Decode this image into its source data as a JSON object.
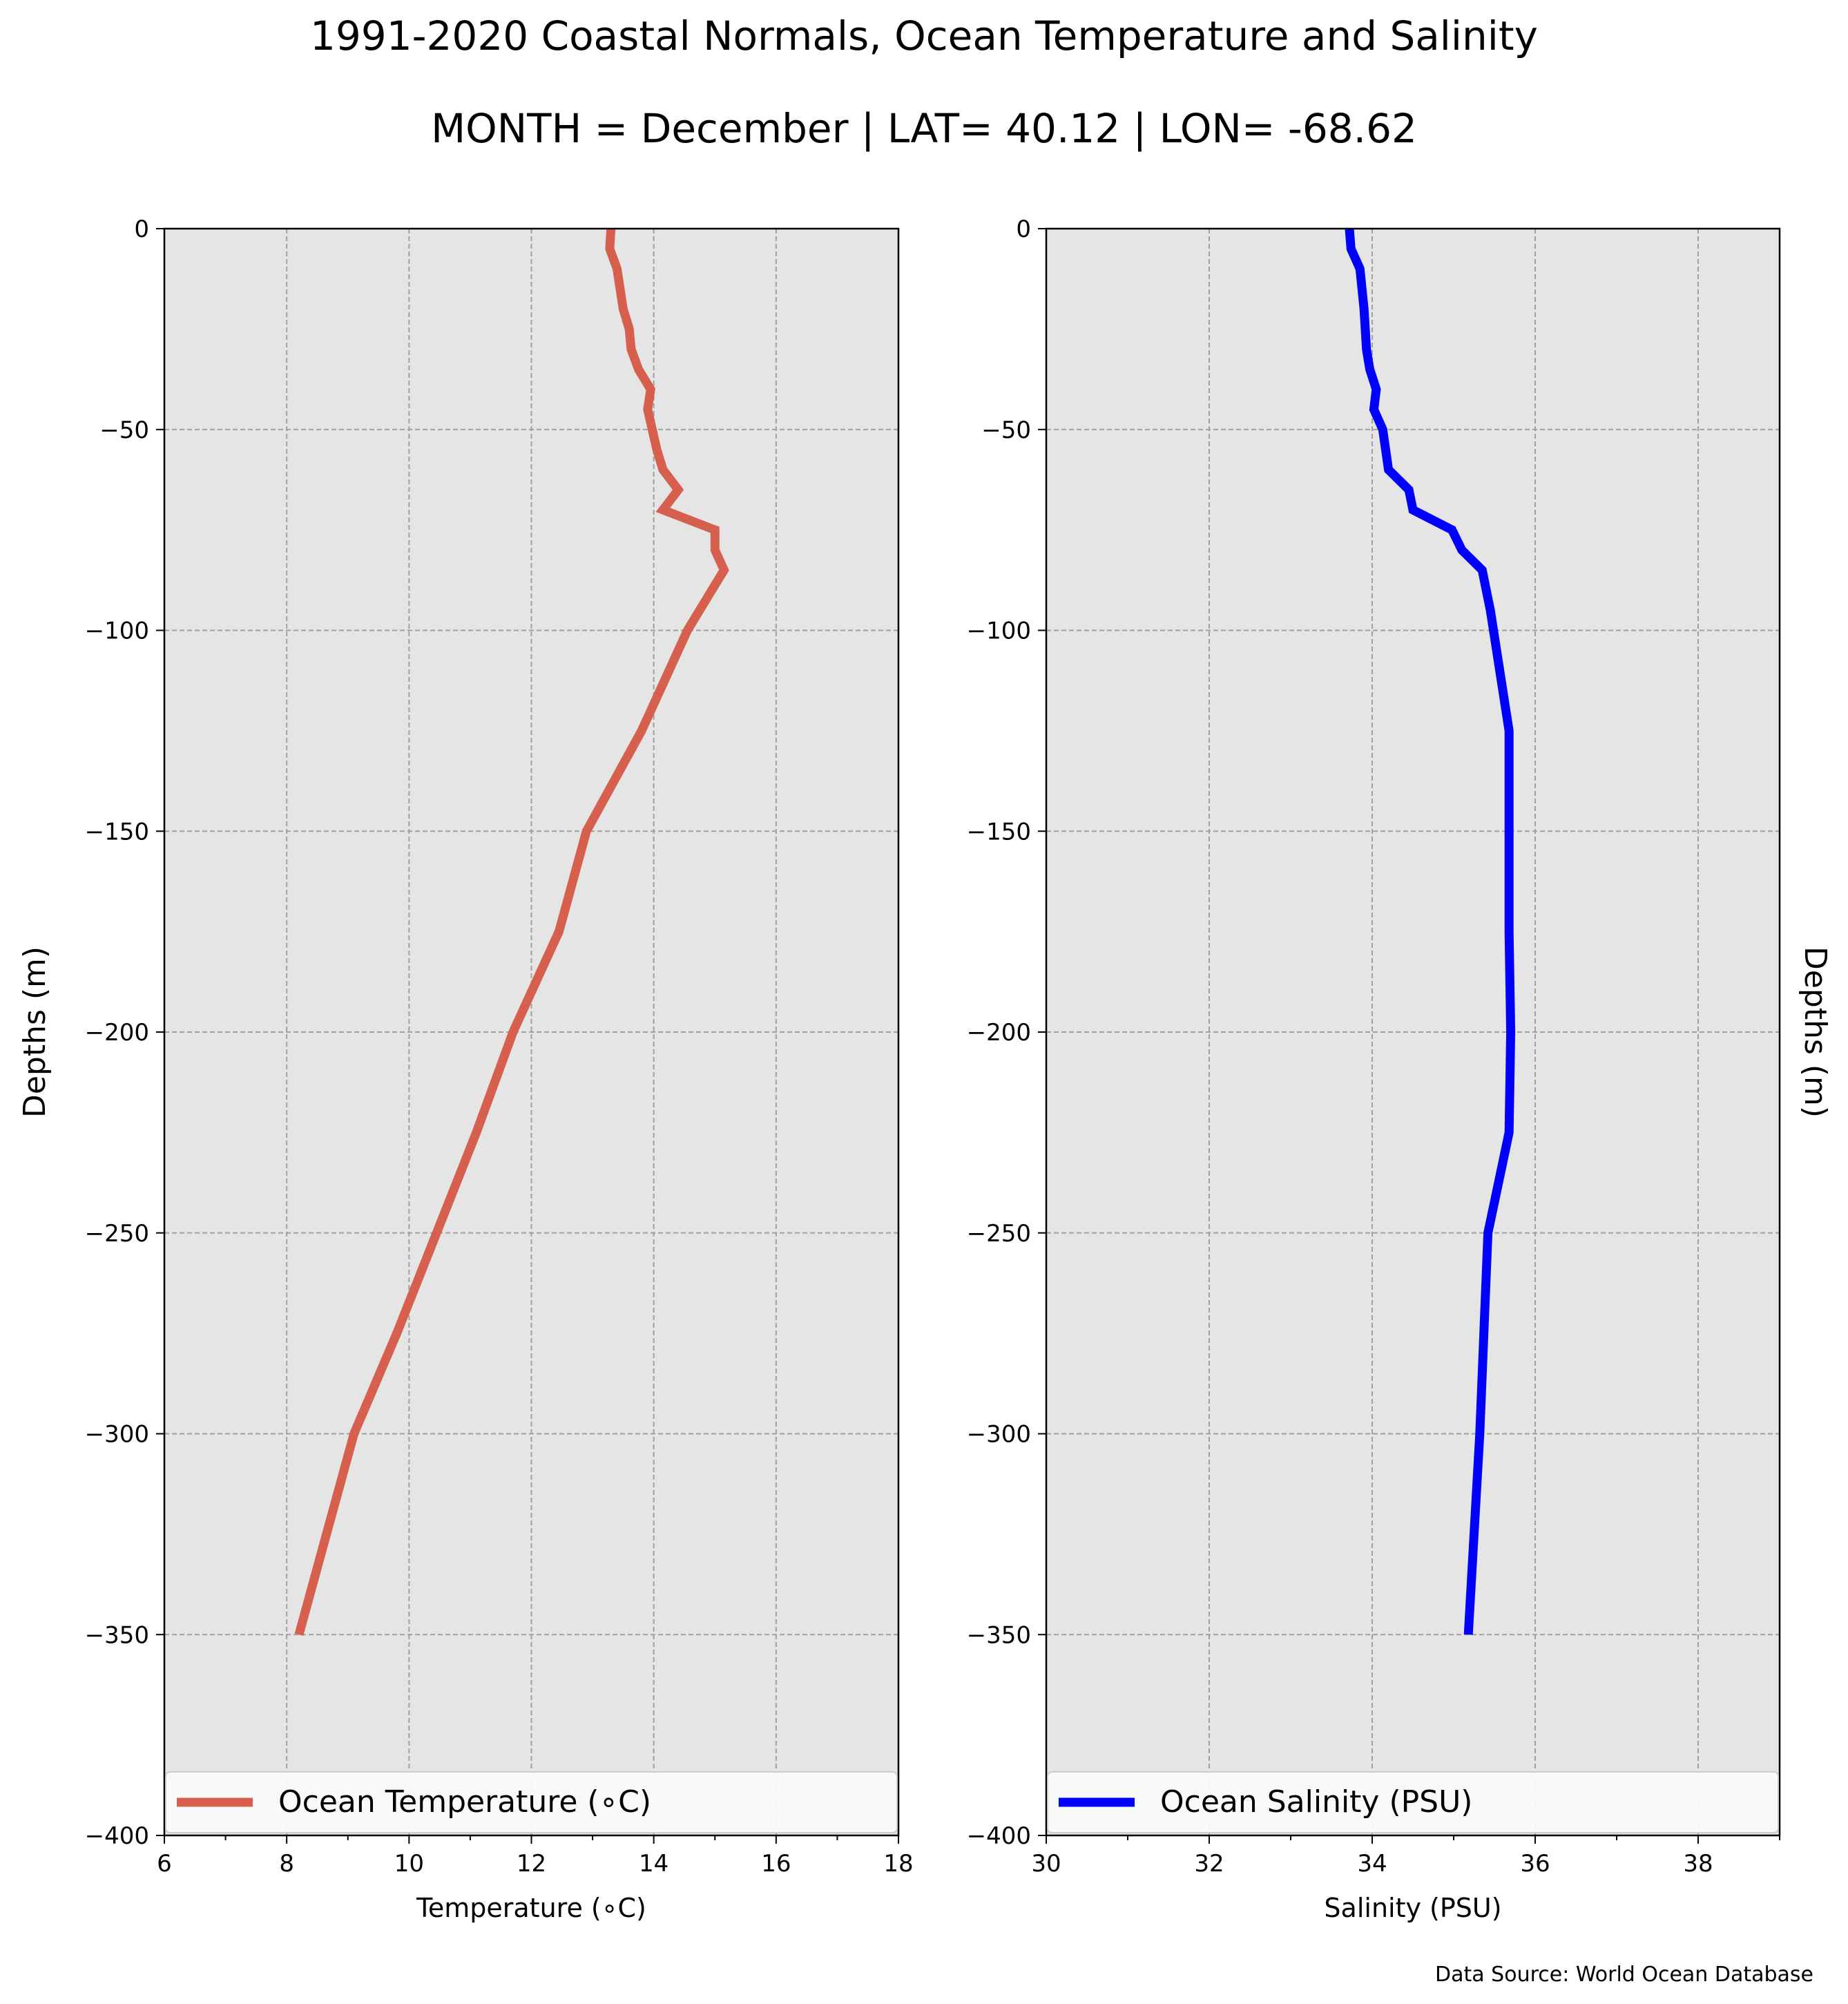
{
  "figure": {
    "title": "1991-2020 Coastal Normals, Ocean Temperature and Salinity",
    "subtitle": "MONTH = December | LAT= 40.12 | LON= -68.62",
    "source": "Data Source: World Ocean Database"
  },
  "colors": {
    "axes_background": "#e5e5e5",
    "grid": "#a0a0a0",
    "temperature_line": "#d6604d",
    "salinity_line": "#0000ff"
  },
  "chart_data": [
    {
      "type": "line",
      "id": "temperature",
      "xlabel": "Temperature (∘C)",
      "ylabel": "Depths (m)",
      "ylabel_side": "left",
      "xlim": [
        6,
        18
      ],
      "ylim": [
        -400,
        0
      ],
      "xticks": [
        "6",
        "8",
        "10",
        "12",
        "14",
        "16",
        "18"
      ],
      "yticks": [
        "0",
        "−50",
        "−100",
        "−150",
        "−200",
        "−250",
        "−300",
        "−350",
        "−400"
      ],
      "grid": true,
      "legend_position": "bottom",
      "series": [
        {
          "name": "Ocean Temperature (∘C)",
          "color": "#d6604d",
          "points": [
            {
              "x": 13.3,
              "y": 0
            },
            {
              "x": 13.28,
              "y": -5
            },
            {
              "x": 13.4,
              "y": -10
            },
            {
              "x": 13.5,
              "y": -20
            },
            {
              "x": 13.6,
              "y": -25
            },
            {
              "x": 13.63,
              "y": -30
            },
            {
              "x": 13.75,
              "y": -35
            },
            {
              "x": 13.95,
              "y": -40
            },
            {
              "x": 13.9,
              "y": -45
            },
            {
              "x": 14.05,
              "y": -55
            },
            {
              "x": 14.15,
              "y": -60
            },
            {
              "x": 14.4,
              "y": -65
            },
            {
              "x": 14.15,
              "y": -70
            },
            {
              "x": 15.0,
              "y": -75
            },
            {
              "x": 15.0,
              "y": -80
            },
            {
              "x": 15.15,
              "y": -85
            },
            {
              "x": 14.95,
              "y": -90
            },
            {
              "x": 14.55,
              "y": -100
            },
            {
              "x": 13.8,
              "y": -125
            },
            {
              "x": 12.9,
              "y": -150
            },
            {
              "x": 12.45,
              "y": -175
            },
            {
              "x": 11.7,
              "y": -200
            },
            {
              "x": 11.1,
              "y": -225
            },
            {
              "x": 10.45,
              "y": -250
            },
            {
              "x": 9.8,
              "y": -275
            },
            {
              "x": 9.1,
              "y": -300
            },
            {
              "x": 8.65,
              "y": -325
            },
            {
              "x": 8.2,
              "y": -350
            }
          ]
        }
      ]
    },
    {
      "type": "line",
      "id": "salinity",
      "xlabel": "Salinity (PSU)",
      "ylabel": "Depths (m)",
      "ylabel_side": "right",
      "xlim": [
        30,
        39
      ],
      "ylim": [
        -400,
        0
      ],
      "xticks": [
        "30",
        "32",
        "34",
        "36",
        "38"
      ],
      "yticks": [
        "0",
        "−50",
        "−100",
        "−150",
        "−200",
        "−250",
        "−300",
        "−350",
        "−400"
      ],
      "grid": true,
      "legend_position": "bottom",
      "series": [
        {
          "name": "Ocean Salinity (PSU)",
          "color": "#0000ff",
          "points": [
            {
              "x": 33.72,
              "y": 0
            },
            {
              "x": 33.74,
              "y": -5
            },
            {
              "x": 33.85,
              "y": -10
            },
            {
              "x": 33.9,
              "y": -20
            },
            {
              "x": 33.93,
              "y": -30
            },
            {
              "x": 33.97,
              "y": -35
            },
            {
              "x": 34.05,
              "y": -40
            },
            {
              "x": 34.02,
              "y": -45
            },
            {
              "x": 34.13,
              "y": -50
            },
            {
              "x": 34.2,
              "y": -60
            },
            {
              "x": 34.45,
              "y": -65
            },
            {
              "x": 34.5,
              "y": -70
            },
            {
              "x": 34.98,
              "y": -75
            },
            {
              "x": 35.1,
              "y": -80
            },
            {
              "x": 35.35,
              "y": -85
            },
            {
              "x": 35.45,
              "y": -95
            },
            {
              "x": 35.68,
              "y": -125
            },
            {
              "x": 35.68,
              "y": -175
            },
            {
              "x": 35.7,
              "y": -200
            },
            {
              "x": 35.68,
              "y": -225
            },
            {
              "x": 35.42,
              "y": -250
            },
            {
              "x": 35.32,
              "y": -300
            },
            {
              "x": 35.25,
              "y": -325
            },
            {
              "x": 35.18,
              "y": -350
            }
          ]
        }
      ]
    }
  ]
}
